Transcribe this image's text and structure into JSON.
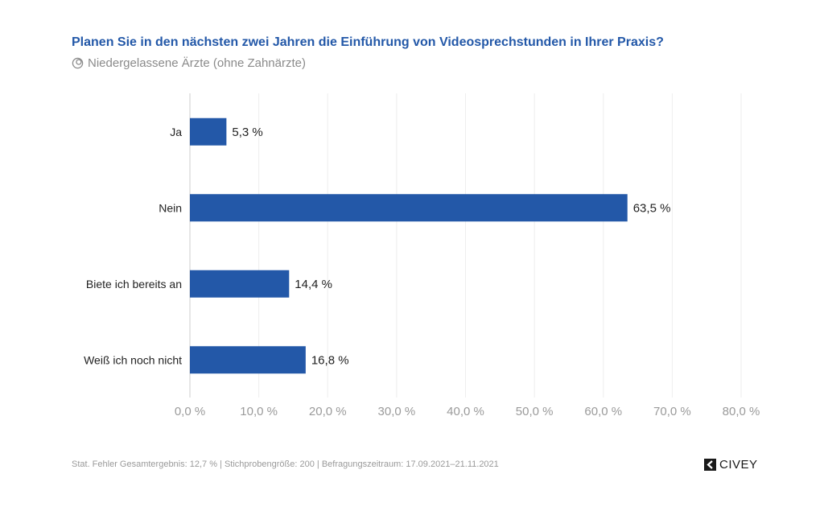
{
  "header": {
    "title": "Planen Sie in den nächsten zwei Jahren die Einführung von Videosprechstunden in Ihrer Praxis?",
    "subtitle": "Niedergelassene Ärzte (ohne Zahnärzte)",
    "subtitle_icon": "group-icon"
  },
  "footer": {
    "text": "Stat. Fehler Gesamtergebnis: 12,7 % | Stichprobengröße: 200 | Befragungszeitraum: 17.09.2021–21.11.2021",
    "logo": "CIVEY"
  },
  "colors": {
    "bar": "#2358a8",
    "title": "#2358a8",
    "grid": "#eeeeee",
    "axis": "#cccccc",
    "tick_label": "#9a9a9a"
  },
  "chart_data": {
    "type": "bar",
    "orientation": "horizontal",
    "title": "Planen Sie in den nächsten zwei Jahren die Einführung von Videosprechstunden in Ihrer Praxis?",
    "subtitle": "Niedergelassene Ärzte (ohne Zahnärzte)",
    "categories": [
      "Ja",
      "Nein",
      "Biete ich bereits an",
      "Weiß ich noch nicht"
    ],
    "values": [
      5.3,
      63.5,
      14.4,
      16.8
    ],
    "value_labels": [
      "5,3 %",
      "63,5 %",
      "14,4 %",
      "16,8 %"
    ],
    "xlabel": "",
    "ylabel": "",
    "xlim": [
      0,
      80
    ],
    "xticks": [
      0,
      10,
      20,
      30,
      40,
      50,
      60,
      70,
      80
    ],
    "xtick_labels": [
      "0,0 %",
      "10,0 %",
      "20,0 %",
      "30,0 %",
      "40,0 %",
      "50,0 %",
      "60,0 %",
      "70,0 %",
      "80,0 %"
    ],
    "grid": true,
    "legend": "none"
  }
}
